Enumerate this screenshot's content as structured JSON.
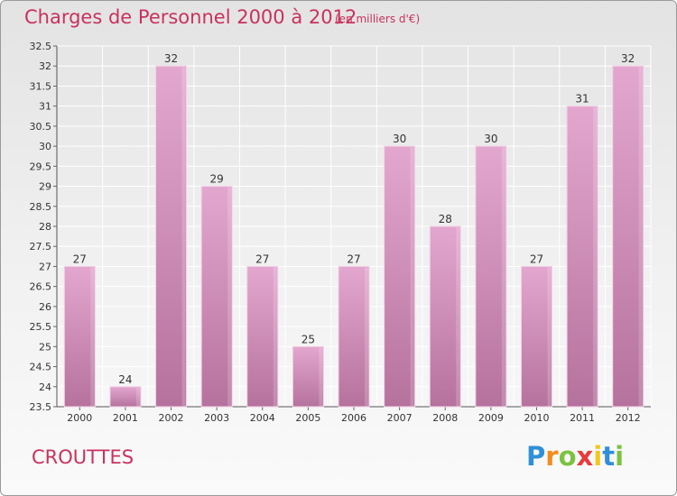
{
  "title": "Charges de Personnel 2000 à 2012",
  "subtitle": "(en milliers d'€)",
  "commune": "CROUTTES",
  "logo": {
    "text": "Proxiti",
    "letters": [
      {
        "ch": "P",
        "color": "#2f8fd8"
      },
      {
        "ch": "r",
        "color": "#f28c1e"
      },
      {
        "ch": "o",
        "color": "#7cc242"
      },
      {
        "ch": "x",
        "color": "#e83a3a"
      },
      {
        "ch": "i",
        "color": "#f2c81e"
      },
      {
        "ch": "t",
        "color": "#2f8fd8"
      },
      {
        "ch": "i",
        "color": "#7cc242"
      }
    ]
  },
  "colors": {
    "bar_top": "#e3a7cf",
    "bar_bottom": "#b5729d",
    "title": "#c8325e",
    "grid": "#ffffff",
    "text": "#333333"
  },
  "chart_data": {
    "type": "bar",
    "categories": [
      "2000",
      "2001",
      "2002",
      "2003",
      "2004",
      "2005",
      "2006",
      "2007",
      "2008",
      "2009",
      "2010",
      "2011",
      "2012"
    ],
    "values": [
      27,
      24,
      32,
      29,
      27,
      25,
      27,
      30,
      28,
      30,
      27,
      31,
      32
    ],
    "ylim": [
      23.5,
      32.5
    ],
    "yticks": [
      "23.5",
      "24",
      "24.5",
      "25",
      "25.5",
      "26",
      "26.5",
      "27",
      "27.5",
      "28",
      "28.5",
      "29",
      "29.5",
      "30",
      "30.5",
      "31",
      "31.5",
      "32",
      "32.5"
    ],
    "grid": true,
    "legend": "none"
  }
}
